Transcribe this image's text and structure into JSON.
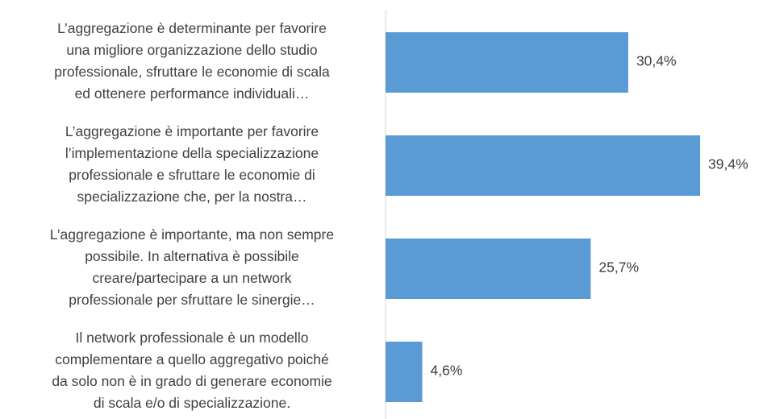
{
  "chart_data": {
    "type": "bar",
    "orientation": "horizontal",
    "categories": [
      [
        "L’aggregazione è determinante per favorire",
        "una migliore organizzazione dello studio",
        "professionale, sfruttare le economie di scala",
        "ed ottenere performance individuali…"
      ],
      [
        "L’aggregazione è importante per favorire",
        "l’implementazione della specializzazione",
        "professionale e sfruttare le economie di",
        "specializzazione che, per la nostra…"
      ],
      [
        "L’aggregazione è importante, ma non sempre",
        "possibile. In alternativa è possibile",
        "creare/partecipare a un network",
        "professionale per sfruttare le sinergie…"
      ],
      [
        "Il network professionale è un modello",
        "complementare a quello aggregativo poiché",
        "da solo non è in grado di generare economie",
        "di scala e/o di specializzazione."
      ]
    ],
    "values": [
      30.4,
      39.4,
      25.7,
      4.6
    ],
    "value_labels": [
      "30,4%",
      "39,4%",
      "25,7%",
      "4,6%"
    ],
    "color": "#5b9bd5",
    "xlim": [
      0,
      45
    ]
  }
}
